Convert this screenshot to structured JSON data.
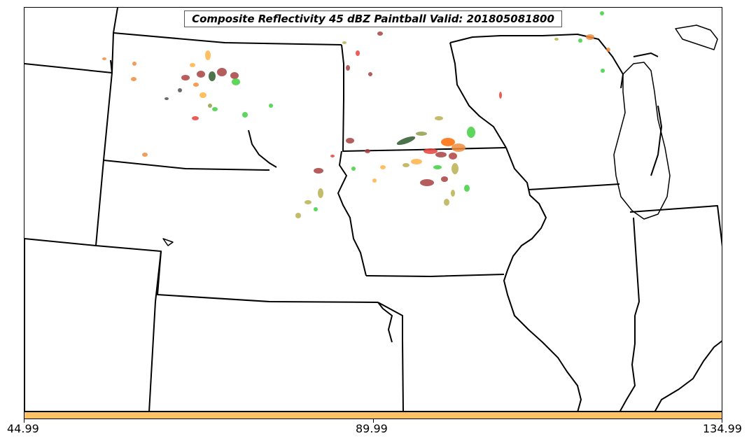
{
  "title": "Composite Reflectivity 45 dBZ Paintball Valid: 201805081800",
  "colorbar": {
    "color": "#ffc366",
    "tick_labels": [
      "44.99",
      "89.99",
      "134.99"
    ]
  },
  "colors": {
    "state_lines": "#000000",
    "lake_lines": "#000000",
    "paintball_palette": [
      "#e8413c",
      "#b04040",
      "#a83f3f",
      "#2e5b2e",
      "#505050",
      "#8fa04a",
      "#3fd03f",
      "#f08c3c",
      "#ffb347",
      "#b8b050",
      "#ff6a00"
    ]
  }
}
